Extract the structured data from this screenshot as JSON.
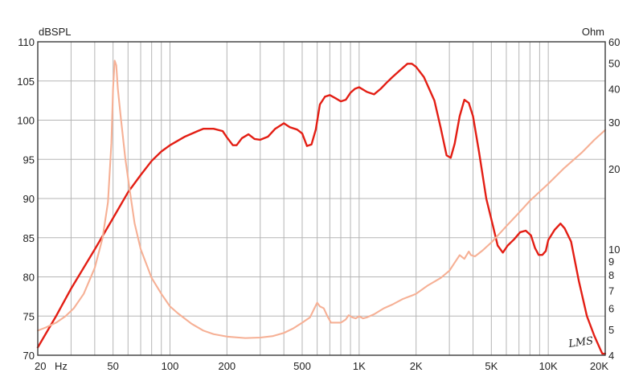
{
  "chart_data": {
    "type": "line",
    "title": "",
    "left_axis_unit": "dBSPL",
    "right_axis_unit": "Ohm",
    "x_unit": "Hz",
    "watermark": "LMS",
    "xscale": "log",
    "xlim": [
      20,
      20000
    ],
    "ylim": [
      70,
      110
    ],
    "y2scale": "log",
    "y2lim": [
      4,
      60
    ],
    "grid": true,
    "x_ticks": [
      {
        "value": 20,
        "label": "20"
      },
      {
        "value": 50,
        "label": "50"
      },
      {
        "value": 100,
        "label": "100"
      },
      {
        "value": 200,
        "label": "200"
      },
      {
        "value": 500,
        "label": "500"
      },
      {
        "value": 1000,
        "label": "1K"
      },
      {
        "value": 2000,
        "label": "2K"
      },
      {
        "value": 5000,
        "label": "5K"
      },
      {
        "value": 10000,
        "label": "10K"
      },
      {
        "value": 20000,
        "label": "20K"
      }
    ],
    "y_ticks": [
      "70",
      "75",
      "80",
      "85",
      "90",
      "95",
      "100",
      "105",
      "110"
    ],
    "y2_ticks": [
      "4",
      "5",
      "6",
      "7",
      "8",
      "9",
      "10",
      "20",
      "30",
      "40",
      "50",
      "60"
    ],
    "series": [
      {
        "color": "#e31e14",
        "axis": "left",
        "points": [
          [
            20,
            71
          ],
          [
            25,
            75
          ],
          [
            30,
            78.5
          ],
          [
            40,
            83.5
          ],
          [
            50,
            87.5
          ],
          [
            60,
            90.8
          ],
          [
            70,
            93
          ],
          [
            80,
            94.8
          ],
          [
            90,
            96
          ],
          [
            100,
            96.8
          ],
          [
            120,
            97.9
          ],
          [
            140,
            98.6
          ],
          [
            150,
            98.9
          ],
          [
            170,
            98.9
          ],
          [
            190,
            98.6
          ],
          [
            200,
            97.8
          ],
          [
            215,
            96.8
          ],
          [
            225,
            96.8
          ],
          [
            240,
            97.7
          ],
          [
            260,
            98.2
          ],
          [
            280,
            97.6
          ],
          [
            300,
            97.5
          ],
          [
            330,
            97.9
          ],
          [
            360,
            98.9
          ],
          [
            400,
            99.6
          ],
          [
            430,
            99.1
          ],
          [
            470,
            98.8
          ],
          [
            500,
            98.3
          ],
          [
            530,
            96.7
          ],
          [
            560,
            96.9
          ],
          [
            590,
            98.8
          ],
          [
            620,
            102
          ],
          [
            660,
            103
          ],
          [
            700,
            103.2
          ],
          [
            750,
            102.8
          ],
          [
            800,
            102.4
          ],
          [
            850,
            102.6
          ],
          [
            900,
            103.5
          ],
          [
            950,
            104
          ],
          [
            1000,
            104.2
          ],
          [
            1100,
            103.6
          ],
          [
            1200,
            103.3
          ],
          [
            1300,
            104
          ],
          [
            1400,
            104.8
          ],
          [
            1500,
            105.5
          ],
          [
            1650,
            106.4
          ],
          [
            1800,
            107.2
          ],
          [
            1900,
            107.2
          ],
          [
            2000,
            106.8
          ],
          [
            2200,
            105.5
          ],
          [
            2500,
            102.5
          ],
          [
            2700,
            99
          ],
          [
            2900,
            95.5
          ],
          [
            3050,
            95.2
          ],
          [
            3200,
            97
          ],
          [
            3400,
            100.5
          ],
          [
            3600,
            102.6
          ],
          [
            3800,
            102.2
          ],
          [
            4000,
            100.5
          ],
          [
            4300,
            96
          ],
          [
            4700,
            90
          ],
          [
            5100,
            86.5
          ],
          [
            5400,
            84
          ],
          [
            5750,
            83.1
          ],
          [
            6100,
            84
          ],
          [
            6600,
            84.8
          ],
          [
            7100,
            85.7
          ],
          [
            7600,
            85.9
          ],
          [
            8100,
            85.3
          ],
          [
            8500,
            83.7
          ],
          [
            8900,
            82.8
          ],
          [
            9300,
            82.8
          ],
          [
            9700,
            83.3
          ],
          [
            10000,
            84.7
          ],
          [
            10800,
            86
          ],
          [
            11600,
            86.8
          ],
          [
            12200,
            86.2
          ],
          [
            13200,
            84.5
          ],
          [
            14500,
            79.5
          ],
          [
            16000,
            75
          ],
          [
            17500,
            72.5
          ],
          [
            18800,
            70.8
          ],
          [
            19300,
            70.2
          ],
          [
            20000,
            70.2
          ]
        ]
      },
      {
        "color": "#f6b095",
        "axis": "right",
        "points": [
          [
            20,
            4.95
          ],
          [
            22,
            5.08
          ],
          [
            25,
            5.3
          ],
          [
            28,
            5.6
          ],
          [
            31,
            6
          ],
          [
            35,
            6.8
          ],
          [
            40,
            8.5
          ],
          [
            44,
            11
          ],
          [
            47,
            15
          ],
          [
            49,
            25
          ],
          [
            50,
            40
          ],
          [
            51,
            51
          ],
          [
            52,
            49
          ],
          [
            53,
            40
          ],
          [
            55,
            31
          ],
          [
            58,
            22
          ],
          [
            61,
            17
          ],
          [
            65,
            12.5
          ],
          [
            70,
            10
          ],
          [
            80,
            7.8
          ],
          [
            90,
            6.8
          ],
          [
            100,
            6.1
          ],
          [
            110,
            5.75
          ],
          [
            130,
            5.25
          ],
          [
            150,
            4.95
          ],
          [
            170,
            4.8
          ],
          [
            200,
            4.7
          ],
          [
            250,
            4.64
          ],
          [
            300,
            4.66
          ],
          [
            350,
            4.72
          ],
          [
            400,
            4.85
          ],
          [
            450,
            5.05
          ],
          [
            500,
            5.3
          ],
          [
            550,
            5.55
          ],
          [
            580,
            6
          ],
          [
            600,
            6.3
          ],
          [
            620,
            6.1
          ],
          [
            650,
            6
          ],
          [
            680,
            5.6
          ],
          [
            710,
            5.3
          ],
          [
            750,
            5.3
          ],
          [
            800,
            5.3
          ],
          [
            850,
            5.45
          ],
          [
            880,
            5.65
          ],
          [
            920,
            5.55
          ],
          [
            960,
            5.5
          ],
          [
            1000,
            5.6
          ],
          [
            1050,
            5.5
          ],
          [
            1100,
            5.55
          ],
          [
            1200,
            5.7
          ],
          [
            1350,
            6
          ],
          [
            1500,
            6.2
          ],
          [
            1700,
            6.5
          ],
          [
            1900,
            6.7
          ],
          [
            2000,
            6.8
          ],
          [
            2300,
            7.3
          ],
          [
            2700,
            7.8
          ],
          [
            3000,
            8.3
          ],
          [
            3200,
            8.9
          ],
          [
            3400,
            9.5
          ],
          [
            3600,
            9.2
          ],
          [
            3700,
            9.5
          ],
          [
            3800,
            9.8
          ],
          [
            3900,
            9.5
          ],
          [
            4100,
            9.4
          ],
          [
            4500,
            9.9
          ],
          [
            5000,
            10.6
          ],
          [
            5500,
            11.4
          ],
          [
            6000,
            12.2
          ],
          [
            7000,
            13.7
          ],
          [
            8000,
            15.2
          ],
          [
            10000,
            17.6
          ],
          [
            12000,
            20
          ],
          [
            15000,
            23
          ],
          [
            17500,
            25.7
          ],
          [
            20000,
            28
          ]
        ]
      }
    ]
  }
}
